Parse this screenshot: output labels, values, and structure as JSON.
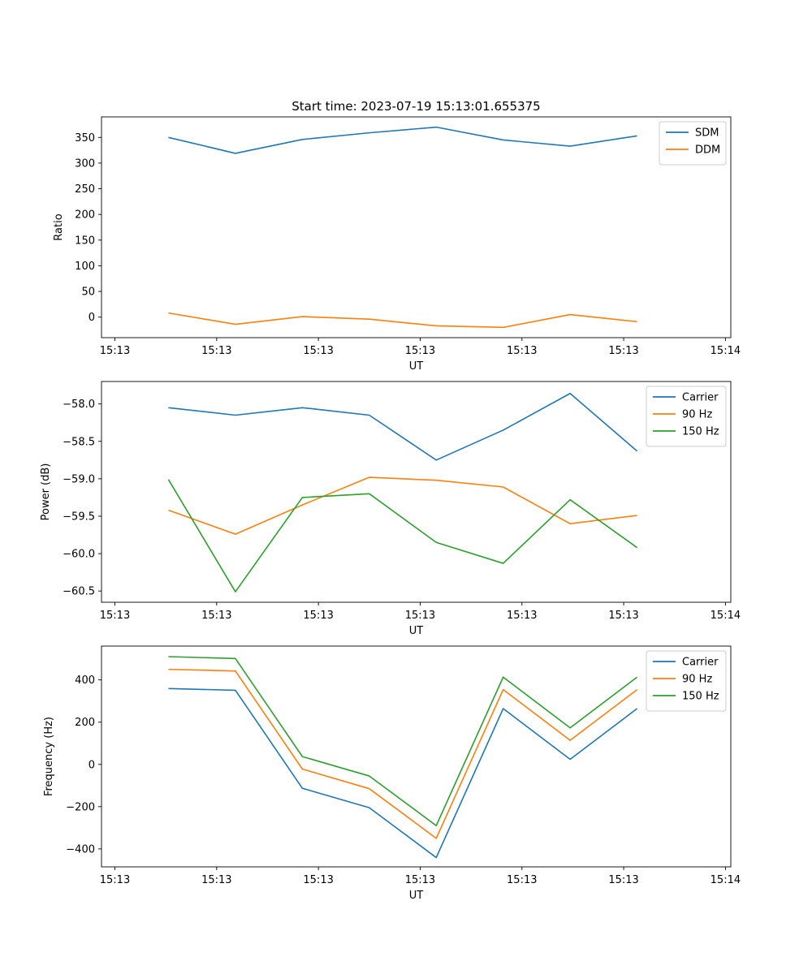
{
  "figure_title": "Start time: 2023-07-19 15:13:01.655375",
  "chart_data": [
    {
      "type": "line",
      "title": "Start time: 2023-07-19 15:13:01.655375",
      "xlabel": "UT",
      "ylabel": "Ratio",
      "xtick_labels": [
        "15:13",
        "15:13",
        "15:13",
        "15:13",
        "15:13",
        "15:13",
        "15:14"
      ],
      "x": [
        1,
        2,
        3,
        4,
        5,
        6,
        7,
        8
      ],
      "xlim": [
        0.0,
        9.4
      ],
      "xticks": [
        0.2,
        1.72,
        3.24,
        4.76,
        6.28,
        7.8,
        9.32
      ],
      "ylim": [
        -40,
        390
      ],
      "yticks": [
        0,
        50,
        100,
        150,
        200,
        250,
        300,
        350
      ],
      "legend": "top-right",
      "series": [
        {
          "name": "SDM",
          "color": "#1f77b4",
          "values": [
            350,
            319,
            346,
            359,
            370,
            345,
            333,
            353
          ]
        },
        {
          "name": "DDM",
          "color": "#ff7f0e",
          "values": [
            8,
            -14,
            1,
            -4,
            -17,
            -20,
            5,
            -9
          ]
        }
      ]
    },
    {
      "type": "line",
      "xlabel": "UT",
      "ylabel": "Power (dB)",
      "xtick_labels": [
        "15:13",
        "15:13",
        "15:13",
        "15:13",
        "15:13",
        "15:13",
        "15:14"
      ],
      "x": [
        1,
        2,
        3,
        4,
        5,
        6,
        7,
        8
      ],
      "xlim": [
        0.0,
        9.4
      ],
      "xticks": [
        0.2,
        1.72,
        3.24,
        4.76,
        6.28,
        7.8,
        9.32
      ],
      "ylim": [
        -60.65,
        -57.7
      ],
      "yticks": [
        -60.5,
        -60.0,
        -59.5,
        -59.0,
        -58.5,
        -58.0
      ],
      "ytick_labels": [
        "−60.5",
        "−60.0",
        "−59.5",
        "−59.0",
        "−58.5",
        "−58.0"
      ],
      "legend": "top-right",
      "series": [
        {
          "name": "Carrier",
          "color": "#1f77b4",
          "values": [
            -58.05,
            -58.15,
            -58.05,
            -58.15,
            -58.75,
            -58.35,
            -57.86,
            -58.63
          ]
        },
        {
          "name": "90 Hz",
          "color": "#ff7f0e",
          "values": [
            -59.42,
            -59.74,
            -59.35,
            -58.98,
            -59.02,
            -59.11,
            -59.6,
            -59.49
          ]
        },
        {
          "name": "150 Hz",
          "color": "#2ca02c",
          "values": [
            -59.01,
            -60.51,
            -59.25,
            -59.2,
            -59.85,
            -60.13,
            -59.28,
            -59.92
          ]
        }
      ]
    },
    {
      "type": "line",
      "xlabel": "UT",
      "ylabel": "Frequency (Hz)",
      "xtick_labels": [
        "15:13",
        "15:13",
        "15:13",
        "15:13",
        "15:13",
        "15:13",
        "15:14"
      ],
      "x": [
        1,
        2,
        3,
        4,
        5,
        6,
        7,
        8
      ],
      "xlim": [
        0.0,
        9.4
      ],
      "xticks": [
        0.2,
        1.72,
        3.24,
        4.76,
        6.28,
        7.8,
        9.32
      ],
      "ylim": [
        -485,
        560
      ],
      "yticks": [
        -400,
        -200,
        0,
        200,
        400
      ],
      "ytick_labels": [
        "−400",
        "−200",
        "0",
        "200",
        "400"
      ],
      "legend": "top-right",
      "series": [
        {
          "name": "Carrier",
          "color": "#1f77b4",
          "values": [
            359,
            351,
            -113,
            -205,
            -441,
            264,
            24,
            264
          ]
        },
        {
          "name": "90 Hz",
          "color": "#ff7f0e",
          "values": [
            450,
            442,
            -22,
            -115,
            -350,
            354,
            114,
            354
          ]
        },
        {
          "name": "150 Hz",
          "color": "#2ca02c",
          "values": [
            510,
            501,
            37,
            -55,
            -290,
            413,
            173,
            413
          ]
        }
      ]
    }
  ]
}
